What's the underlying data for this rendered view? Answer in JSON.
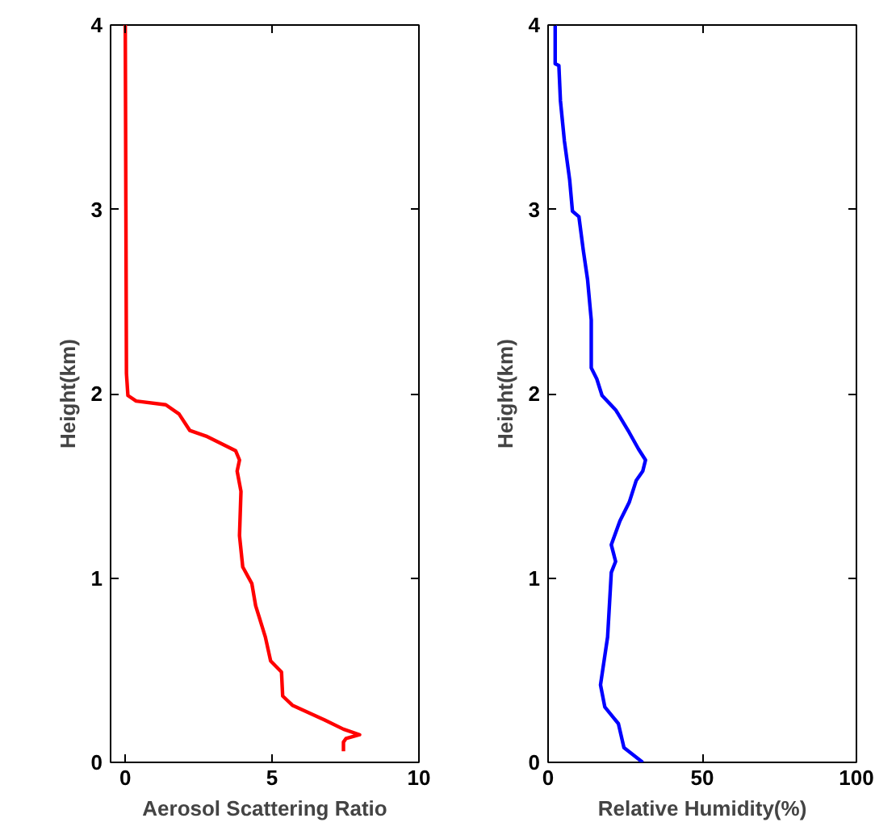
{
  "chart_data": [
    {
      "type": "line",
      "xlabel": "Aerosol Scattering Ratio",
      "ylabel": "Height(km)",
      "xlim": [
        -0.5,
        10
      ],
      "xticks": [
        0,
        5,
        10
      ],
      "ylim": [
        0,
        4
      ],
      "yticks": [
        0,
        1,
        2,
        3,
        4
      ],
      "grid": false,
      "series": [
        {
          "color": "#ff0000",
          "x": [
            0,
            0.04,
            0.09,
            0.37,
            1.38,
            1.83,
            2.2,
            2.75,
            3.76,
            3.89,
            3.81,
            3.94,
            3.89,
            4.0,
            4.31,
            4.44,
            4.77,
            4.95,
            5.32,
            5.36,
            5.69,
            6.79,
            7.43,
            7.98,
            7.52,
            7.43,
            7.43
          ],
          "values": [
            4,
            2.11,
            1.99,
            1.96,
            1.94,
            1.89,
            1.8,
            1.77,
            1.69,
            1.64,
            1.58,
            1.47,
            1.23,
            1.06,
            0.97,
            0.85,
            0.68,
            0.55,
            0.49,
            0.36,
            0.31,
            0.23,
            0.18,
            0.15,
            0.13,
            0.11,
            0.06
          ]
        }
      ]
    },
    {
      "type": "line",
      "xlabel": "Relative Humidity(%)",
      "ylabel": "Height(km)",
      "xlim": [
        0,
        100
      ],
      "xticks": [
        0,
        50,
        100
      ],
      "ylim": [
        0,
        4
      ],
      "yticks": [
        0,
        1,
        2,
        3,
        4
      ],
      "grid": false,
      "series": [
        {
          "color": "#0000ff",
          "x": [
            2.3,
            2.3,
            3.5,
            4,
            5.3,
            7,
            7.9,
            10,
            11.4,
            12.8,
            14,
            14,
            15.8,
            17.5,
            22,
            26.3,
            29.3,
            31.6,
            30.7,
            28.6,
            26.3,
            23.3,
            20.5,
            21.9,
            20.5,
            19.3,
            17,
            18.4,
            22.8,
            24.6,
            30.7
          ],
          "values": [
            4,
            3.79,
            3.78,
            3.59,
            3.37,
            3.16,
            2.99,
            2.96,
            2.78,
            2.62,
            2.4,
            2.14,
            2.08,
            1.99,
            1.91,
            1.79,
            1.7,
            1.64,
            1.58,
            1.53,
            1.41,
            1.31,
            1.18,
            1.09,
            1.03,
            0.68,
            0.42,
            0.3,
            0.21,
            0.08,
            0
          ]
        }
      ]
    }
  ]
}
